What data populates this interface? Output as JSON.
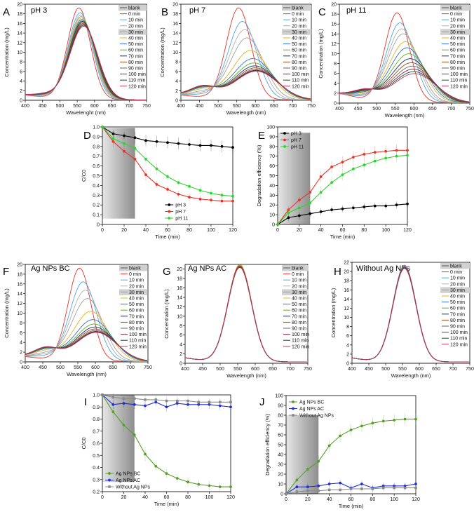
{
  "chart_data": [
    {
      "id": "A",
      "letter": "A",
      "type": "line",
      "title": "pH 3",
      "xlabel": "Wavelenght (nm)",
      "ylabel": "Concentration (mg/L)",
      "xlim": [
        400,
        750
      ],
      "ylim": [
        0,
        20
      ],
      "xticks": [
        400,
        450,
        500,
        550,
        600,
        650,
        700,
        750
      ],
      "yticks": [
        0,
        2,
        4,
        6,
        8,
        10,
        12,
        14,
        16,
        18,
        20
      ],
      "legend_entries": [
        "blank",
        "0 min",
        "10 min",
        "20 min",
        "30 min",
        "40 min",
        "50 min",
        "60 min",
        "70 min",
        "80 min",
        "90 min",
        "100 min",
        "110 min",
        "120 min"
      ],
      "peaks_mg_per_L": {
        "blank": 0,
        "0 min": 19.0,
        "10 min": 18.0,
        "20 min": 17.5,
        "30 min": 17.2,
        "40 min": 16.9,
        "50 min": 16.6,
        "60 min": 16.4,
        "70 min": 16.2,
        "80 min": 16.0,
        "90 min": 15.8,
        "100 min": 15.6,
        "110 min": 15.4,
        "120 min": 15.2
      },
      "peak_wavelength_nm": 555
    },
    {
      "id": "B",
      "letter": "B",
      "type": "line",
      "title": "pH 7",
      "xlabel": "Wavelength (nm)",
      "ylabel": "Concentration (mg/L)",
      "xlim": [
        400,
        750
      ],
      "ylim": [
        0,
        20
      ],
      "xticks": [
        400,
        450,
        500,
        550,
        600,
        650,
        700,
        750
      ],
      "yticks": [
        0,
        2,
        4,
        6,
        8,
        10,
        12,
        14,
        16,
        18,
        20
      ],
      "legend_entries": [
        "blank",
        "0 min",
        "10 min",
        "20 min",
        "30 min",
        "40 min",
        "50 min",
        "60 min",
        "70 min",
        "80 min",
        "90 min",
        "100 min",
        "110 min",
        "120 min"
      ],
      "peaks_mg_per_L": {
        "blank": 0,
        "0 min": 19.0,
        "10 min": 16.2,
        "20 min": 14.5,
        "30 min": 12.8,
        "40 min": 10.2,
        "50 min": 8.5,
        "60 min": 7.6,
        "70 min": 7.0,
        "80 min": 6.6,
        "90 min": 6.3,
        "100 min": 6.1,
        "110 min": 6.0,
        "120 min": 5.9
      }
    },
    {
      "id": "C",
      "letter": "C",
      "type": "line",
      "title": "pH 11",
      "xlabel": "Wavelength (nm)",
      "ylabel": "Concentration (mg/L)",
      "xlim": [
        400,
        750
      ],
      "ylim": [
        0,
        20
      ],
      "xticks": [
        400,
        450,
        500,
        550,
        600,
        650,
        700,
        750
      ],
      "yticks": [
        0,
        2,
        4,
        6,
        8,
        10,
        12,
        14,
        16,
        18,
        20
      ],
      "legend_entries": [
        "blank",
        "0 min",
        "10 min",
        "20 min",
        "30 min",
        "40 min",
        "50 min",
        "60 min",
        "70 min",
        "80 min",
        "90 min",
        "100 min",
        "110 min",
        "120 min"
      ],
      "peaks_mg_per_L": {
        "blank": 0,
        "0 min": 18.0,
        "10 min": 16.0,
        "20 min": 14.8,
        "30 min": 13.8,
        "40 min": 12.2,
        "50 min": 11.0,
        "60 min": 9.8,
        "70 min": 8.8,
        "80 min": 8.0,
        "90 min": 7.3,
        "100 min": 6.7,
        "110 min": 6.2,
        "120 min": 5.8
      }
    },
    {
      "id": "D",
      "letter": "D",
      "type": "line",
      "title": "",
      "xlabel": "Time (min)",
      "ylabel": "C/C0",
      "xlim": [
        0,
        120
      ],
      "ylim": [
        0,
        1.0
      ],
      "xticks": [
        0,
        20,
        40,
        60,
        80,
        100,
        120
      ],
      "yticks": [
        0,
        0.1,
        0.2,
        0.3,
        0.4,
        0.5,
        0.6,
        0.7,
        0.8,
        0.9,
        1.0
      ],
      "dark_region": [
        0,
        30
      ],
      "legend_position": "bottom-right",
      "x": [
        0,
        10,
        20,
        30,
        40,
        50,
        60,
        70,
        80,
        90,
        100,
        110,
        120
      ],
      "series": [
        {
          "name": "pH 3",
          "color": "#000000",
          "values": [
            1.0,
            0.93,
            0.91,
            0.89,
            0.86,
            0.85,
            0.84,
            0.83,
            0.82,
            0.81,
            0.81,
            0.8,
            0.79
          ]
        },
        {
          "name": "pH 7",
          "color": "#e8332a",
          "values": [
            1.0,
            0.85,
            0.75,
            0.67,
            0.51,
            0.41,
            0.36,
            0.31,
            0.28,
            0.26,
            0.25,
            0.24,
            0.24
          ]
        },
        {
          "name": "pH 11",
          "color": "#2ed42e",
          "values": [
            1.0,
            0.88,
            0.83,
            0.78,
            0.67,
            0.57,
            0.49,
            0.43,
            0.39,
            0.35,
            0.32,
            0.3,
            0.29
          ]
        }
      ]
    },
    {
      "id": "E",
      "letter": "E",
      "type": "line",
      "title": "",
      "xlabel": "Time (min)",
      "ylabel": "Degradation efficiency (%)",
      "xlim": [
        0,
        120
      ],
      "ylim": [
        0,
        100
      ],
      "xticks": [
        0,
        20,
        40,
        60,
        80,
        100,
        120
      ],
      "yticks": [
        0,
        10,
        20,
        30,
        40,
        50,
        60,
        70,
        80,
        90,
        100
      ],
      "dark_region": [
        0,
        30
      ],
      "legend_position": "top-left",
      "x": [
        0,
        10,
        20,
        30,
        40,
        50,
        60,
        70,
        80,
        90,
        100,
        110,
        120
      ],
      "series": [
        {
          "name": "pH 3",
          "color": "#000000",
          "values": [
            0,
            7,
            9,
            11,
            13,
            15,
            16,
            17,
            18,
            19,
            19,
            20,
            21
          ]
        },
        {
          "name": "pH 7",
          "color": "#e8332a",
          "values": [
            0,
            15,
            25,
            33,
            49,
            59,
            64,
            69,
            72,
            74,
            75,
            76,
            76
          ]
        },
        {
          "name": "pH 11",
          "color": "#2ed42e",
          "values": [
            0,
            12,
            17,
            22,
            33,
            43,
            51,
            57,
            61,
            65,
            68,
            70,
            71
          ]
        }
      ]
    },
    {
      "id": "F",
      "letter": "F",
      "type": "line",
      "title": "Ag NPs BC",
      "xlabel": "Wavelength (nm)",
      "ylabel": "Concentration (mg/L)",
      "xlim": [
        400,
        750
      ],
      "ylim": [
        0,
        20
      ],
      "xticks": [
        400,
        450,
        500,
        550,
        600,
        650,
        700,
        750
      ],
      "yticks": [
        0,
        2,
        4,
        6,
        8,
        10,
        12,
        14,
        16,
        18,
        20
      ],
      "legend_entries": [
        "blank",
        "0 min",
        "10 min",
        "20 min",
        "30 min",
        "40 min",
        "50 min",
        "60 min",
        "70 min",
        "80 min",
        "90 min",
        "100 min",
        "110 min",
        "120 min"
      ],
      "peaks_mg_per_L": {
        "blank": 0,
        "0 min": 19.0,
        "10 min": 16.2,
        "20 min": 14.5,
        "30 min": 12.8,
        "40 min": 10.2,
        "50 min": 8.5,
        "60 min": 7.6,
        "70 min": 7.0,
        "80 min": 6.6,
        "90 min": 6.3,
        "100 min": 6.1,
        "110 min": 6.0,
        "120 min": 5.9
      }
    },
    {
      "id": "G",
      "letter": "G",
      "type": "line",
      "title": "Ag NPs AC",
      "xlabel": "Wavelength (nm)",
      "ylabel": "Concentration (mg/L)",
      "xlim": [
        400,
        750
      ],
      "ylim": [
        0,
        21
      ],
      "xticks": [
        400,
        450,
        500,
        550,
        600,
        650,
        700,
        750
      ],
      "yticks": [
        0,
        2,
        4,
        6,
        8,
        10,
        12,
        14,
        16,
        18,
        20
      ],
      "legend_entries": [
        "blank",
        "0 min",
        "10 min",
        "20 min",
        "30 min",
        "40 min",
        "50 min",
        "60 min",
        "70 min",
        "80 min",
        "90 min",
        "100 min",
        "110 min",
        "120 min"
      ],
      "peaks_mg_per_L": {
        "blank": 0,
        "0 min": 20.6,
        "10 min": 20.4,
        "20 min": 20.3,
        "30 min": 20.2,
        "40 min": 20.5,
        "50 min": 20.1,
        "60 min": 20.4,
        "70 min": 20.2,
        "80 min": 20.3,
        "90 min": 20.1,
        "100 min": 20.2,
        "110 min": 20.0,
        "120 min": 20.1
      }
    },
    {
      "id": "H",
      "letter": "H",
      "type": "line",
      "title": "Without Ag NPs",
      "xlabel": "Wavelength (nm)",
      "ylabel": "Concentration (mg/L)",
      "xlim": [
        400,
        750
      ],
      "ylim": [
        0,
        22
      ],
      "xticks": [
        400,
        450,
        500,
        550,
        600,
        650,
        700,
        750
      ],
      "yticks": [
        0,
        2,
        4,
        6,
        8,
        10,
        12,
        14,
        16,
        18,
        20,
        22
      ],
      "legend_entries": [
        "blank",
        "0 min",
        "10 min",
        "20 min",
        "30 min",
        "40 min",
        "50 min",
        "60 min",
        "70 min",
        "80 min",
        "90 min",
        "100 min",
        "110 min",
        "120 min"
      ],
      "peaks_mg_per_L": {
        "blank": 0,
        "0 min": 21.0,
        "10 min": 20.9,
        "20 min": 20.8,
        "30 min": 20.8,
        "40 min": 20.7,
        "50 min": 20.7,
        "60 min": 20.6,
        "70 min": 20.6,
        "80 min": 20.5,
        "90 min": 20.5,
        "100 min": 20.4,
        "110 min": 20.4,
        "120 min": 20.3
      }
    },
    {
      "id": "I",
      "letter": "I",
      "type": "line",
      "title": "",
      "xlabel": "Time (min)",
      "ylabel": "C/C0",
      "xlim": [
        0,
        120
      ],
      "ylim": [
        0.2,
        1.0
      ],
      "xticks": [
        0,
        20,
        40,
        60,
        80,
        100,
        120
      ],
      "yticks": [
        0.2,
        0.3,
        0.4,
        0.5,
        0.6,
        0.7,
        0.8,
        0.9,
        1.0
      ],
      "dark_region": [
        0,
        30
      ],
      "legend_position": "bottom-left",
      "x": [
        0,
        10,
        20,
        30,
        40,
        50,
        60,
        70,
        80,
        90,
        100,
        110,
        120
      ],
      "series": [
        {
          "name": "Ag NPs BC",
          "color": "#5a9e2a",
          "values": [
            1.0,
            0.86,
            0.75,
            0.67,
            0.51,
            0.41,
            0.35,
            0.31,
            0.28,
            0.26,
            0.25,
            0.24,
            0.24
          ]
        },
        {
          "name": "Ag NPs AC",
          "color": "#1f2ed8",
          "values": [
            1.0,
            0.92,
            0.93,
            0.92,
            0.91,
            0.94,
            0.9,
            0.93,
            0.92,
            0.92,
            0.92,
            0.91,
            0.9
          ]
        },
        {
          "name": "Without Ag NPs",
          "color": "#8a8a8a",
          "values": [
            1.0,
            0.98,
            0.97,
            0.97,
            0.96,
            0.96,
            0.95,
            0.95,
            0.95,
            0.94,
            0.94,
            0.94,
            0.94
          ]
        }
      ]
    },
    {
      "id": "J",
      "letter": "J",
      "type": "line",
      "title": "",
      "xlabel": "Time (min)",
      "ylabel": "Degradation efficiency (%)",
      "xlim": [
        0,
        120
      ],
      "ylim": [
        0,
        100
      ],
      "xticks": [
        0,
        20,
        40,
        60,
        80,
        100,
        120
      ],
      "yticks": [
        0,
        10,
        20,
        30,
        40,
        50,
        60,
        70,
        80,
        90,
        100
      ],
      "dark_region": [
        0,
        30
      ],
      "legend_position": "top-left",
      "x": [
        0,
        10,
        20,
        30,
        40,
        50,
        60,
        70,
        80,
        90,
        100,
        110,
        120
      ],
      "series": [
        {
          "name": "Ag NPs BC",
          "color": "#5a9e2a",
          "values": [
            0,
            14,
            25,
            33,
            49,
            59,
            65,
            69,
            72,
            74,
            75,
            76,
            76
          ]
        },
        {
          "name": "Ag NPs AC",
          "color": "#1f2ed8",
          "values": [
            0,
            7,
            7,
            8,
            10,
            11,
            6,
            10,
            6,
            8,
            8,
            8,
            10
          ]
        },
        {
          "name": "Without Ag NPs",
          "color": "#8a8a8a",
          "values": [
            0,
            2,
            3,
            3,
            4,
            4,
            5,
            5,
            5,
            6,
            6,
            6,
            6
          ]
        }
      ]
    }
  ],
  "spectra_colors": [
    "#555555",
    "#e8332a",
    "#4fa8e0",
    "#b0b0b0",
    "#a0a0a0",
    "#e8b020",
    "#3070c8",
    "#5cb030",
    "#1a2a70",
    "#9a4a10",
    "#666666",
    "#8b2040",
    "#1e4a2a",
    "#c83060"
  ]
}
